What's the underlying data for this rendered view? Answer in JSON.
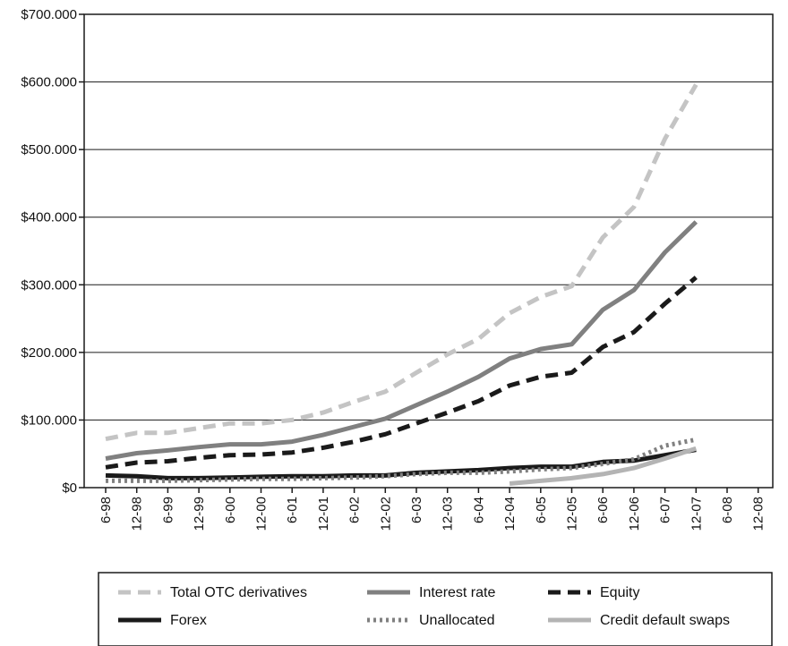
{
  "chart_data": {
    "type": "line",
    "title": "",
    "xlabel": "",
    "ylabel": "",
    "categories": [
      "6-98",
      "12-98",
      "6-99",
      "12-99",
      "6-00",
      "12-00",
      "6-01",
      "12-01",
      "6-02",
      "12-02",
      "6-03",
      "12-03",
      "6-04",
      "12-04",
      "6-05",
      "12-05",
      "6-06",
      "12-06",
      "6-07",
      "12-07",
      "6-08",
      "12-08"
    ],
    "ylim": [
      0,
      700000
    ],
    "y_ticks": [
      0,
      100000,
      200000,
      300000,
      400000,
      500000,
      600000,
      700000
    ],
    "y_tick_labels": [
      "$0",
      "$100.000",
      "$200.000",
      "$300.000",
      "$400.000",
      "$500.000",
      "$600.000",
      "$700.000"
    ],
    "grid": "horizontal",
    "legend_position": "bottom",
    "series": [
      {
        "name": "Total OTC derivatives",
        "color": "#c4c4c4",
        "dash": "dashed",
        "values": [
          72000,
          81000,
          81000,
          88000,
          95000,
          95000,
          100000,
          111000,
          127000,
          142000,
          170000,
          197000,
          220000,
          258000,
          282000,
          298000,
          370000,
          415000,
          516000,
          596000,
          null,
          null
        ]
      },
      {
        "name": "Interest rate",
        "color": "#808080",
        "dash": "solid",
        "values": [
          43000,
          51000,
          55000,
          60000,
          64000,
          64000,
          68000,
          78000,
          90000,
          102000,
          122000,
          142000,
          164000,
          191000,
          205000,
          212000,
          263000,
          292000,
          348000,
          393000,
          null,
          null
        ]
      },
      {
        "name": "Equity",
        "color": "#1a1a1a",
        "dash": "dashed",
        "values": [
          30000,
          37000,
          39000,
          44000,
          48000,
          49000,
          52000,
          59000,
          68000,
          79000,
          95000,
          111000,
          128000,
          151000,
          164000,
          170000,
          208000,
          230000,
          272000,
          311000,
          null,
          null
        ]
      },
      {
        "name": "Forex",
        "color": "#1a1a1a",
        "dash": "solid",
        "values": [
          18000,
          17000,
          14000,
          14000,
          15000,
          16000,
          17000,
          17000,
          18000,
          18000,
          22000,
          24000,
          26000,
          29000,
          31000,
          31000,
          38000,
          40000,
          48000,
          56000,
          null,
          null
        ]
      },
      {
        "name": "Unallocated",
        "color": "#808080",
        "dash": "dotted",
        "values": [
          10000,
          10000,
          10000,
          11000,
          12000,
          13000,
          13000,
          14000,
          15000,
          17000,
          20000,
          22000,
          22000,
          24000,
          27000,
          29000,
          35000,
          42000,
          62000,
          71000,
          null,
          null
        ]
      },
      {
        "name": "Credit default swaps",
        "color": "#b4b4b4",
        "dash": "solid",
        "values": [
          null,
          null,
          null,
          null,
          null,
          null,
          null,
          null,
          null,
          null,
          null,
          null,
          null,
          6000,
          10000,
          14000,
          20000,
          29000,
          43000,
          58000,
          null,
          null
        ]
      }
    ]
  }
}
